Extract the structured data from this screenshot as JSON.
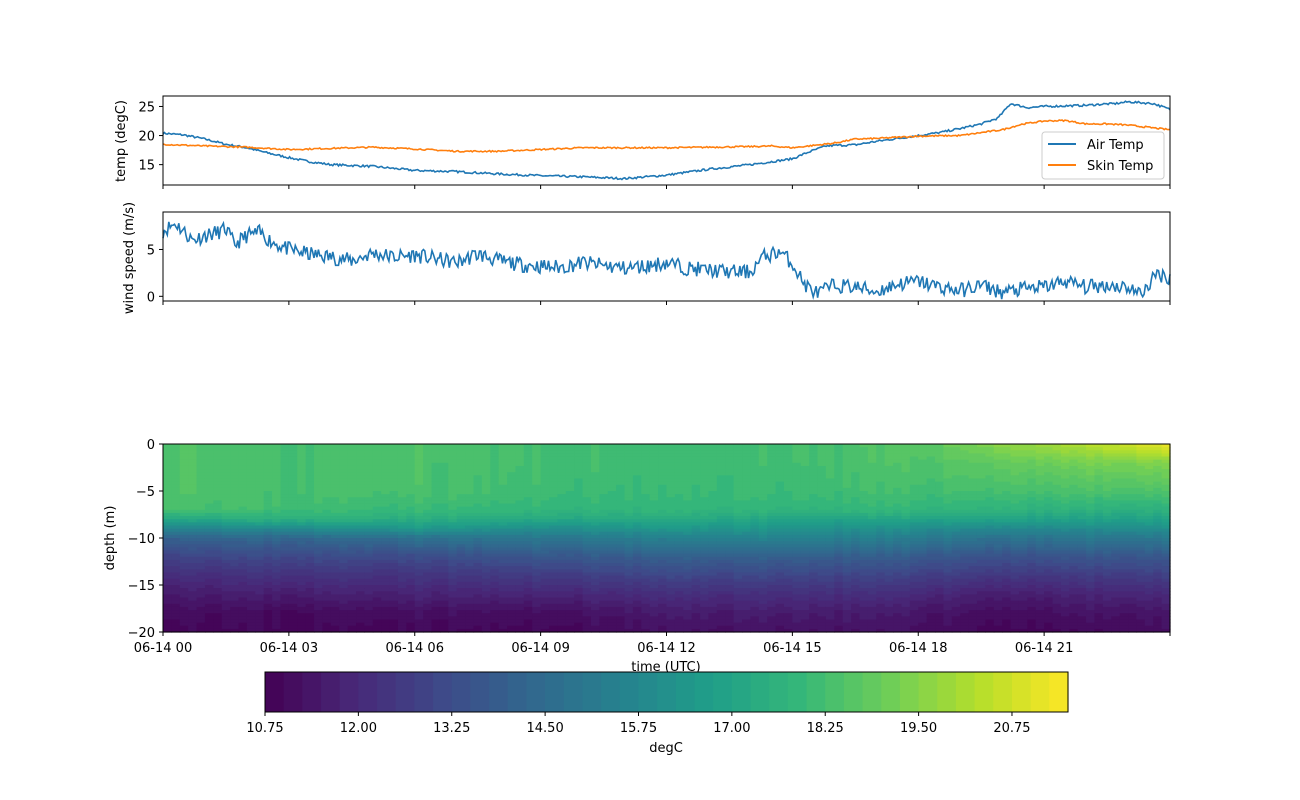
{
  "chart_data": [
    {
      "type": "line",
      "ylabel": "temp (degC)",
      "ylim": [
        11.5,
        26.8
      ],
      "yticks": [
        15,
        20,
        25
      ],
      "x_start": "06-14 00",
      "legend": {
        "placement": "lower-right",
        "entries": [
          "Air Temp",
          "Skin Temp"
        ]
      },
      "series": [
        {
          "name": "Air Temp",
          "color": "#1f77b4",
          "x_hours": [
            0,
            0.5,
            1,
            1.5,
            2,
            2.5,
            3,
            3.5,
            4,
            5,
            6,
            7,
            8,
            9,
            10,
            11,
            12,
            13,
            14,
            14.5,
            15,
            15.4,
            15.8,
            16,
            16.5,
            17,
            17.5,
            18,
            18.5,
            19,
            19.5,
            19.9,
            20.2,
            20.6,
            21,
            21.5,
            22,
            22.4,
            22.7,
            23,
            23.6,
            24
          ],
          "values": [
            20.4,
            20.1,
            19.4,
            18.5,
            17.9,
            17.0,
            16.2,
            15.5,
            15.0,
            14.7,
            14.0,
            13.8,
            13.4,
            13.1,
            12.9,
            12.6,
            13.2,
            14.2,
            15.0,
            15.5,
            16.0,
            17.2,
            18.2,
            18.3,
            18.4,
            19.0,
            19.5,
            20.0,
            20.5,
            21.2,
            22.0,
            23.0,
            25.5,
            24.8,
            25.0,
            25.1,
            25.2,
            25.4,
            25.5,
            25.8,
            25.5,
            24.5
          ]
        },
        {
          "name": "Skin Temp",
          "color": "#ff7f0e",
          "x_hours": [
            0,
            1,
            2,
            3,
            4,
            5,
            6,
            7,
            8,
            9,
            10,
            11,
            12,
            13,
            14,
            14.5,
            15,
            15.5,
            16,
            16.5,
            17,
            18,
            19,
            19.5,
            20,
            20.5,
            21,
            21.5,
            22,
            22.5,
            23,
            23.5,
            24
          ],
          "values": [
            18.5,
            18.2,
            18.0,
            17.6,
            17.8,
            18.0,
            17.7,
            17.3,
            17.3,
            17.6,
            17.9,
            17.9,
            17.9,
            18.0,
            18.1,
            18.2,
            17.9,
            18.3,
            18.7,
            19.4,
            19.5,
            19.9,
            20.0,
            20.5,
            21.0,
            22.0,
            22.5,
            22.6,
            22.0,
            22.0,
            21.8,
            21.4,
            21.0
          ]
        }
      ]
    },
    {
      "type": "line",
      "ylabel": "wind speed (m/s)",
      "ylim": [
        -0.5,
        9.0
      ],
      "yticks": [
        0,
        5
      ],
      "series": [
        {
          "name": "",
          "color": "#1f77b4",
          "x_hours": [
            0,
            0.3,
            0.7,
            1,
            1.3,
            1.5,
            1.7,
            2,
            2.3,
            2.6,
            3,
            3.5,
            4,
            4.5,
            5,
            5.5,
            6,
            6.5,
            7,
            7.5,
            8,
            8.5,
            9,
            9.5,
            10,
            10.5,
            11,
            11.5,
            12,
            12.5,
            13,
            13.5,
            14,
            14.3,
            14.7,
            15,
            15.3,
            15.6,
            16,
            16.5,
            17,
            17.5,
            18,
            18.5,
            19,
            19.5,
            20,
            20.5,
            21,
            21.5,
            22,
            22.5,
            23,
            23.3,
            23.7,
            24
          ],
          "values": [
            7.0,
            7.8,
            6.0,
            6.5,
            6.8,
            7.2,
            5.5,
            6.5,
            6.8,
            5.8,
            5.0,
            4.5,
            4.2,
            3.8,
            4.6,
            4.2,
            4.4,
            4.0,
            3.6,
            4.5,
            3.8,
            3.4,
            3.2,
            3.1,
            3.6,
            3.3,
            3.0,
            3.2,
            3.6,
            3.0,
            2.8,
            2.6,
            2.6,
            4.2,
            4.8,
            3.5,
            1.2,
            0.3,
            1.2,
            1.0,
            0.5,
            1.3,
            1.6,
            1.0,
            0.6,
            1.2,
            0.4,
            0.8,
            1.0,
            1.6,
            1.0,
            1.2,
            1.0,
            0.2,
            2.4,
            2.0
          ]
        }
      ]
    },
    {
      "type": "heatmap",
      "xlabel": "time (UTC)",
      "ylabel": "depth (m)",
      "ylim": [
        -20,
        0
      ],
      "yticks": [
        0,
        -5,
        -10,
        -15,
        -20
      ],
      "xticks": [
        "06-14 00",
        "06-14 03",
        "06-14 06",
        "06-14 09",
        "06-14 12",
        "06-14 15",
        "06-14 18",
        "06-14 21"
      ],
      "xlim_hours": [
        0,
        24
      ],
      "colormap": "viridis",
      "value_range": [
        10.75,
        21.5
      ],
      "profile_depths": [
        0,
        -2,
        -5,
        -7,
        -8,
        -9,
        -10,
        -12,
        -14,
        -16,
        -18,
        -20
      ],
      "profile_hours": [
        0,
        3,
        6,
        9,
        12,
        15,
        18,
        20,
        22,
        24
      ],
      "profiles": [
        [
          18.6,
          18.6,
          18.6,
          18.4,
          17.2,
          15.6,
          14.2,
          13.0,
          12.2,
          11.6,
          11.2,
          11.0
        ],
        [
          18.3,
          18.3,
          18.3,
          18.1,
          17.6,
          15.9,
          14.3,
          13.1,
          12.3,
          11.6,
          11.0,
          10.9
        ],
        [
          18.4,
          18.4,
          18.4,
          18.0,
          17.5,
          16.5,
          14.8,
          13.2,
          12.4,
          11.8,
          11.2,
          11.0
        ],
        [
          18.2,
          18.2,
          18.1,
          17.8,
          17.2,
          16.0,
          15.0,
          13.6,
          12.6,
          11.8,
          11.1,
          10.9
        ],
        [
          18.1,
          18.1,
          18.0,
          17.8,
          17.3,
          16.4,
          15.4,
          14.0,
          13.0,
          12.1,
          11.5,
          11.2
        ],
        [
          18.2,
          18.2,
          18.1,
          17.8,
          17.0,
          16.3,
          15.6,
          14.0,
          13.0,
          12.2,
          11.6,
          11.3
        ],
        [
          18.6,
          18.5,
          18.2,
          17.8,
          17.0,
          16.0,
          15.2,
          13.8,
          12.8,
          12.0,
          11.4,
          11.2
        ],
        [
          19.6,
          18.9,
          18.3,
          17.7,
          17.0,
          15.8,
          14.8,
          13.4,
          12.5,
          11.6,
          11.1,
          10.9
        ],
        [
          20.3,
          19.2,
          18.4,
          17.6,
          16.9,
          15.9,
          15.0,
          13.6,
          12.6,
          11.8,
          11.3,
          11.0
        ],
        [
          21.2,
          19.4,
          18.4,
          17.5,
          16.9,
          16.0,
          15.0,
          13.6,
          12.7,
          11.9,
          11.3,
          11.1
        ]
      ]
    },
    {
      "type": "colorbar",
      "label": "degC",
      "tick_labels": [
        "10.75",
        "12.00",
        "13.25",
        "14.50",
        "15.75",
        "17.00",
        "18.25",
        "19.50",
        "20.75"
      ],
      "min": 10.75,
      "max": 21.5,
      "levels": 43
    }
  ]
}
